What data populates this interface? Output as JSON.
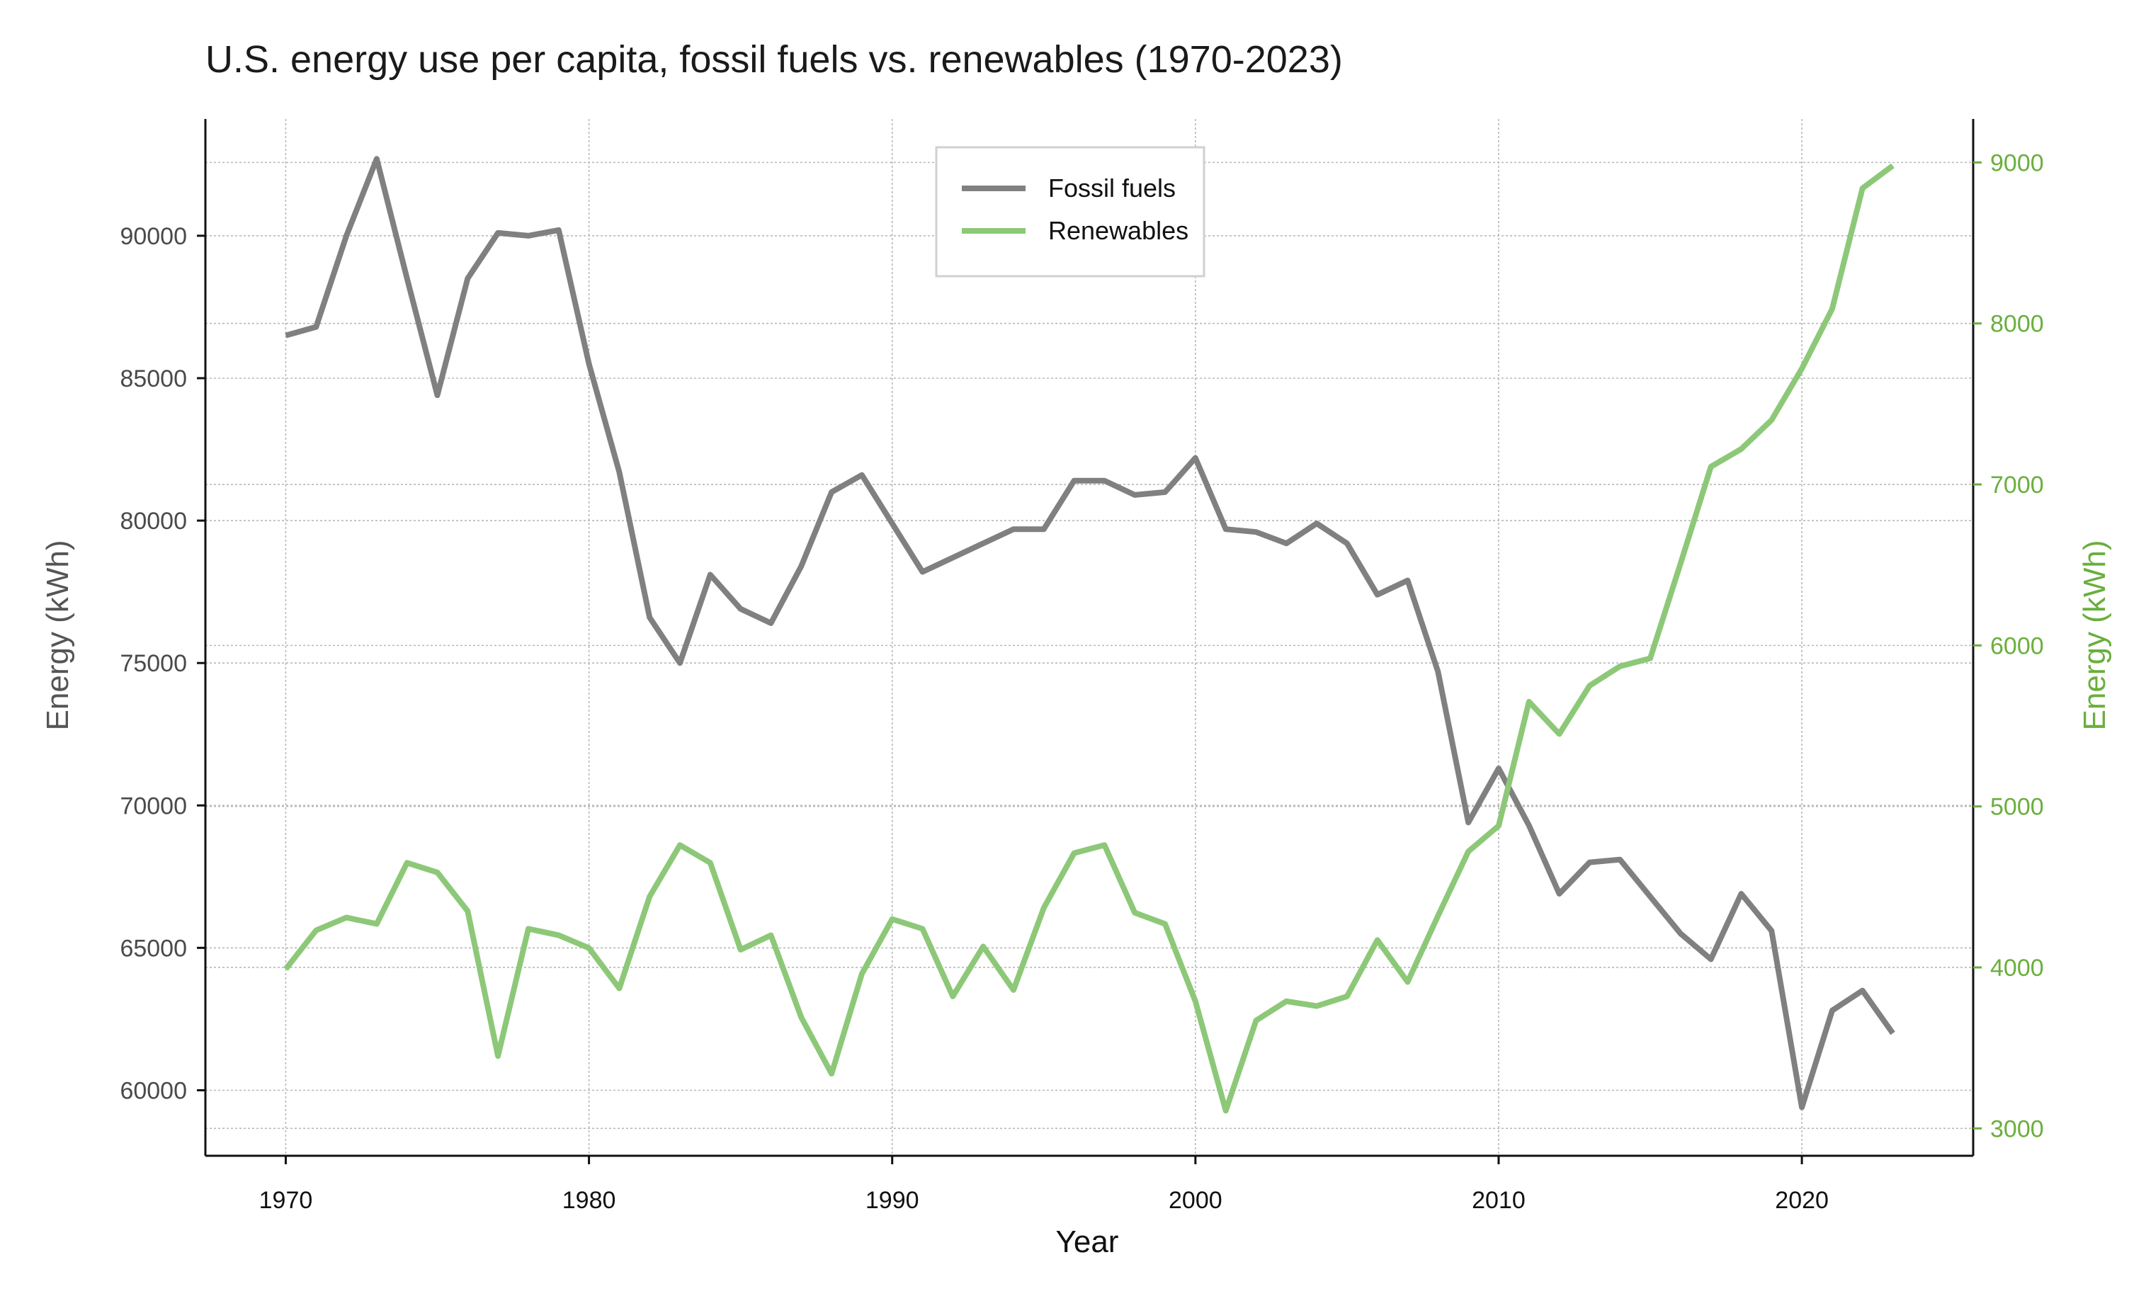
{
  "chart_data": {
    "type": "line",
    "title": "U.S. energy use per capita, fossil fuels vs. renewables (1970-2023)",
    "xlabel": "Year",
    "ylabel_left": "Energy (kWh)",
    "ylabel_right": "Energy (kWh)",
    "xlim": [
      1967.35,
      2025.65
    ],
    "ylim_left": [
      57700,
      94100
    ],
    "ylim_right": [
      2830,
      9270
    ],
    "x_ticks": [
      1970,
      1980,
      1990,
      2000,
      2010,
      2020
    ],
    "y_ticks_left": [
      60000,
      65000,
      70000,
      75000,
      80000,
      85000,
      90000
    ],
    "y_ticks_right": [
      3000,
      4000,
      5000,
      6000,
      7000,
      8000,
      9000
    ],
    "grid": true,
    "legend_position": "top-center",
    "x": [
      1970,
      1971,
      1972,
      1973,
      1974,
      1975,
      1976,
      1977,
      1978,
      1979,
      1980,
      1981,
      1982,
      1983,
      1984,
      1985,
      1986,
      1987,
      1988,
      1989,
      1990,
      1991,
      1992,
      1993,
      1994,
      1995,
      1996,
      1997,
      1998,
      1999,
      2000,
      2001,
      2002,
      2003,
      2004,
      2005,
      2006,
      2007,
      2008,
      2009,
      2010,
      2011,
      2012,
      2013,
      2014,
      2015,
      2016,
      2017,
      2018,
      2019,
      2020,
      2021,
      2022,
      2023
    ],
    "series": [
      {
        "name": "Fossil fuels",
        "axis": "left",
        "color": "#808080",
        "values": [
          86500,
          86800,
          90000,
          92700,
          88500,
          84400,
          88500,
          90100,
          90000,
          90200,
          85500,
          81700,
          76600,
          75000,
          78100,
          76900,
          76400,
          78400,
          81000,
          81600,
          79900,
          78200,
          78700,
          79200,
          79700,
          79700,
          81400,
          81400,
          80900,
          81000,
          82200,
          79700,
          79600,
          79200,
          79900,
          79200,
          77400,
          77900,
          74700,
          69400,
          71300,
          69300,
          66900,
          68000,
          68100,
          66800,
          65500,
          64600,
          66900,
          65600,
          59400,
          62800,
          63500,
          62000
        ]
      },
      {
        "name": "Renewables",
        "axis": "right",
        "color": "#8dc878",
        "values": [
          3990,
          4230,
          4310,
          4270,
          4650,
          4590,
          4350,
          3450,
          4240,
          4200,
          4120,
          3870,
          4440,
          4760,
          4650,
          4110,
          4200,
          3690,
          3340,
          3960,
          4300,
          4240,
          3820,
          4130,
          3860,
          4370,
          4710,
          4760,
          4340,
          4270,
          3790,
          3110,
          3670,
          3790,
          3760,
          3820,
          4170,
          3910,
          4320,
          4720,
          4880,
          5650,
          5450,
          5750,
          5870,
          5920,
          6510,
          7110,
          7220,
          7400,
          7720,
          8090,
          8840,
          8980
        ]
      }
    ]
  }
}
